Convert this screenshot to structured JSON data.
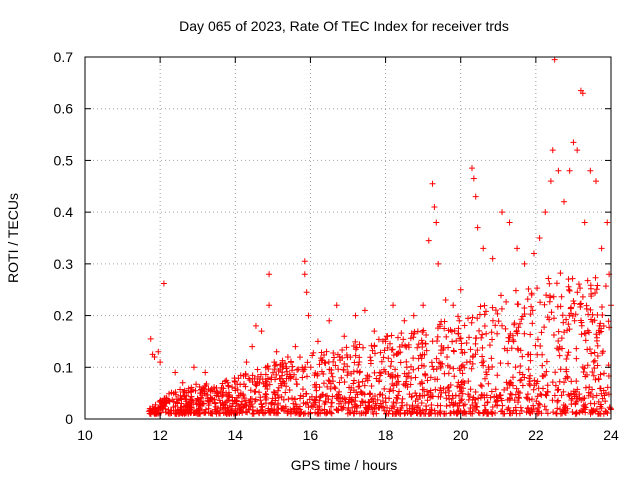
{
  "chart_data": {
    "type": "scatter",
    "title": "Day 065 of 2023, Rate Of TEC Index for receiver trds",
    "xlabel": "GPS time / hours",
    "ylabel": "ROTI / TECUs",
    "xlim": [
      10,
      24
    ],
    "ylim": [
      0,
      0.7
    ],
    "xticks": [
      "10",
      "12",
      "14",
      "16",
      "18",
      "20",
      "22",
      "24"
    ],
    "yticks": [
      "0",
      "0.1",
      "0.2",
      "0.3",
      "0.4",
      "0.5",
      "0.6",
      "0.7"
    ],
    "xtick_values": [
      10,
      12,
      14,
      16,
      18,
      20,
      22,
      24
    ],
    "ytick_values": [
      0,
      0.1,
      0.2,
      0.3,
      0.4,
      0.5,
      0.6,
      0.7
    ],
    "grid": true,
    "marker": "+",
    "marker_color": "#ff0000",
    "series": [
      {
        "name": "ROTI",
        "points": [
          [
            11.75,
            0.155
          ],
          [
            11.8,
            0.125
          ],
          [
            11.85,
            0.12
          ],
          [
            11.95,
            0.13
          ],
          [
            12.0,
            0.11
          ],
          [
            12.1,
            0.262
          ],
          [
            12.4,
            0.09
          ],
          [
            12.6,
            0.07
          ],
          [
            12.9,
            0.1
          ],
          [
            13.2,
            0.09
          ],
          [
            13.5,
            0.06
          ],
          [
            13.8,
            0.07
          ],
          [
            14.0,
            0.055
          ],
          [
            14.3,
            0.11
          ],
          [
            14.45,
            0.14
          ],
          [
            14.55,
            0.18
          ],
          [
            14.7,
            0.17
          ],
          [
            14.9,
            0.28
          ],
          [
            14.9,
            0.22
          ],
          [
            15.1,
            0.13
          ],
          [
            15.4,
            0.12
          ],
          [
            15.6,
            0.14
          ],
          [
            15.85,
            0.305
          ],
          [
            15.85,
            0.28
          ],
          [
            15.9,
            0.245
          ],
          [
            15.95,
            0.2
          ],
          [
            16.2,
            0.15
          ],
          [
            16.5,
            0.19
          ],
          [
            16.7,
            0.22
          ],
          [
            16.9,
            0.16
          ],
          [
            17.2,
            0.2
          ],
          [
            17.45,
            0.21
          ],
          [
            17.7,
            0.17
          ],
          [
            18.0,
            0.15
          ],
          [
            18.2,
            0.22
          ],
          [
            18.5,
            0.19
          ],
          [
            18.75,
            0.2
          ],
          [
            19.0,
            0.22
          ],
          [
            19.15,
            0.345
          ],
          [
            19.25,
            0.455
          ],
          [
            19.3,
            0.41
          ],
          [
            19.35,
            0.38
          ],
          [
            19.4,
            0.3
          ],
          [
            19.6,
            0.23
          ],
          [
            19.8,
            0.22
          ],
          [
            20.0,
            0.25
          ],
          [
            20.3,
            0.485
          ],
          [
            20.35,
            0.465
          ],
          [
            20.4,
            0.43
          ],
          [
            20.45,
            0.37
          ],
          [
            20.6,
            0.33
          ],
          [
            20.85,
            0.31
          ],
          [
            21.1,
            0.4
          ],
          [
            21.3,
            0.38
          ],
          [
            21.5,
            0.33
          ],
          [
            21.7,
            0.3
          ],
          [
            21.95,
            0.32
          ],
          [
            22.1,
            0.35
          ],
          [
            22.25,
            0.4
          ],
          [
            22.4,
            0.46
          ],
          [
            22.45,
            0.52
          ],
          [
            22.5,
            0.695
          ],
          [
            22.6,
            0.48
          ],
          [
            22.75,
            0.42
          ],
          [
            22.9,
            0.48
          ],
          [
            23.0,
            0.535
          ],
          [
            23.1,
            0.52
          ],
          [
            23.2,
            0.635
          ],
          [
            23.25,
            0.63
          ],
          [
            23.3,
            0.38
          ],
          [
            23.45,
            0.48
          ],
          [
            23.6,
            0.46
          ],
          [
            23.75,
            0.33
          ],
          [
            23.9,
            0.38
          ],
          [
            23.95,
            0.28
          ],
          [
            24.0,
            0.22
          ]
        ],
        "envelope": {
          "x": [
            11.7,
            12.0,
            12.5,
            13.0,
            13.5,
            14.0,
            14.5,
            15.0,
            15.5,
            16.0,
            16.5,
            17.0,
            17.5,
            18.0,
            18.5,
            19.0,
            19.5,
            20.0,
            20.5,
            21.0,
            21.5,
            22.0,
            22.5,
            23.0,
            23.5,
            24.0
          ],
          "low": [
            0.01,
            0.01,
            0.01,
            0.01,
            0.01,
            0.01,
            0.01,
            0.01,
            0.01,
            0.01,
            0.01,
            0.01,
            0.01,
            0.01,
            0.01,
            0.01,
            0.01,
            0.01,
            0.01,
            0.01,
            0.01,
            0.01,
            0.01,
            0.01,
            0.01,
            0.01
          ],
          "high": [
            0.03,
            0.04,
            0.06,
            0.07,
            0.07,
            0.08,
            0.1,
            0.11,
            0.12,
            0.13,
            0.14,
            0.15,
            0.15,
            0.16,
            0.17,
            0.18,
            0.19,
            0.2,
            0.22,
            0.24,
            0.25,
            0.26,
            0.28,
            0.29,
            0.28,
            0.27
          ]
        },
        "dense_count": 1700
      }
    ]
  }
}
